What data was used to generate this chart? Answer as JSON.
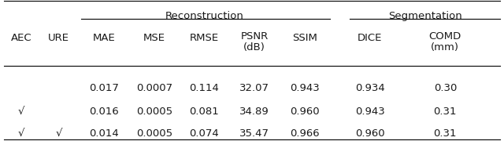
{
  "title_reconstruction": "Reconstruction",
  "title_segmentation": "Segmentation",
  "col_headers": [
    "AEC",
    "URE",
    "MAE",
    "MSE",
    "RMSE",
    "PSNR\n(dB)",
    "SSIM",
    "DICE",
    "COMD\n(mm)"
  ],
  "rows": [
    [
      "",
      "",
      "0.017",
      "0.0007",
      "0.114",
      "32.07",
      "0.943",
      "0.934",
      "0.30"
    ],
    [
      "√",
      "",
      "0.016",
      "0.0005",
      "0.081",
      "34.89",
      "0.960",
      "0.943",
      "0.31"
    ],
    [
      "√",
      "√",
      "0.014",
      "0.0005",
      "0.074",
      "35.47",
      "0.966",
      "0.960",
      "0.31"
    ]
  ],
  "text_color": "#1a1a1a",
  "header_fontsize": 9.5,
  "cell_fontsize": 9.5,
  "fig_width": 6.4,
  "fig_height": 1.8
}
